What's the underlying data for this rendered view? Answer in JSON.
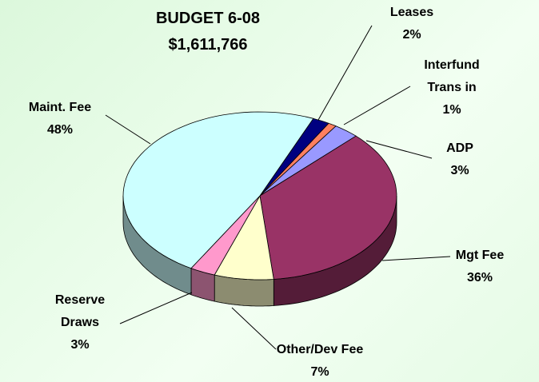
{
  "chart_data": {
    "type": "pie3d",
    "title": "BUDGET 6-08",
    "subtitle": "$1,611,766",
    "categories": [
      "Leases",
      "Interfund Trans in",
      "ADP",
      "Mgt Fee",
      "Other/Dev Fee",
      "Reserve Draws",
      "Maint. Fee"
    ],
    "values": [
      2,
      1,
      3,
      36,
      7,
      3,
      48
    ],
    "value_labels": [
      "2%",
      "1%",
      "3%",
      "36%",
      "7%",
      "3%",
      "48%"
    ],
    "colors": [
      "#000080",
      "#ff8060",
      "#9999ff",
      "#993366",
      "#ffffcc",
      "#ff99cc",
      "#ccffff"
    ]
  }
}
